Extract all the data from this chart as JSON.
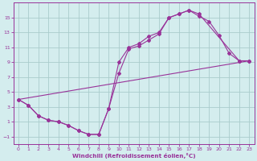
{
  "xlabel": "Windchill (Refroidissement éolien,°C)",
  "bg_color": "#d4edee",
  "grid_color": "#aacccc",
  "line_color": "#993399",
  "xlim": [
    -0.5,
    23.5
  ],
  "ylim": [
    -2,
    17
  ],
  "xticks": [
    0,
    1,
    2,
    3,
    4,
    5,
    6,
    7,
    8,
    9,
    10,
    11,
    12,
    13,
    14,
    15,
    16,
    17,
    18,
    19,
    20,
    21,
    22,
    23
  ],
  "yticks": [
    -1,
    1,
    3,
    5,
    7,
    9,
    11,
    13,
    15
  ],
  "curve1_x": [
    0,
    1,
    2,
    3,
    4,
    5,
    6,
    7,
    8,
    9,
    10,
    11,
    12,
    13,
    14,
    15,
    16,
    17,
    18,
    19,
    20,
    21,
    22,
    23
  ],
  "curve1_y": [
    4.0,
    3.2,
    1.8,
    1.2,
    1.0,
    0.5,
    -0.2,
    -0.7,
    -0.7,
    2.8,
    7.5,
    10.8,
    11.2,
    12.0,
    12.8,
    15.0,
    15.5,
    16.0,
    15.2,
    14.5,
    12.6,
    10.2,
    9.2,
    9.2
  ],
  "curve2_x": [
    0,
    1,
    2,
    3,
    4,
    5,
    6,
    7,
    8,
    9,
    10,
    11,
    12,
    13,
    14,
    15,
    16,
    17,
    18,
    22,
    23
  ],
  "curve2_y": [
    4.0,
    3.2,
    1.8,
    1.2,
    1.0,
    0.5,
    -0.2,
    -0.7,
    -0.7,
    2.8,
    9.0,
    11.0,
    11.5,
    12.5,
    13.0,
    15.0,
    15.5,
    16.0,
    15.5,
    9.2,
    9.2
  ],
  "curve3_x": [
    0,
    23
  ],
  "curve3_y": [
    4.0,
    9.2
  ],
  "marker_style": "D",
  "marker_size": 2.0,
  "line_width": 0.8
}
